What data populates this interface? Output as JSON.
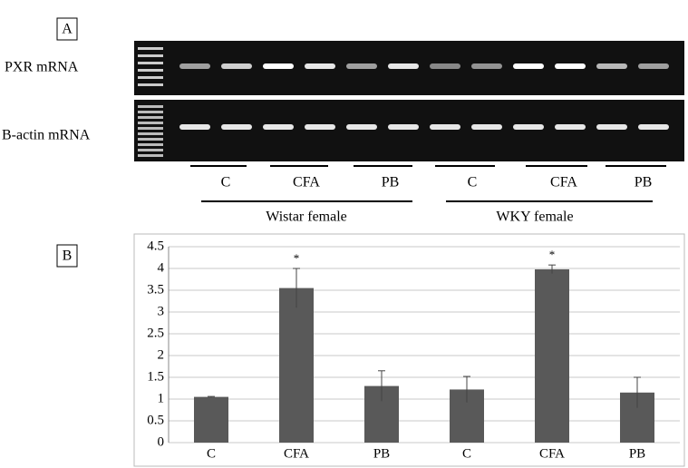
{
  "panel_a": {
    "panel_label": "A",
    "row_labels": [
      "PXR mRNA",
      "B-actin mRNA"
    ],
    "lane_groups": [
      "C",
      "CFA",
      "PB",
      "C",
      "CFA",
      "PB"
    ],
    "strains": [
      "Wistar female",
      "WKY female"
    ]
  },
  "chart_data": {
    "type": "bar",
    "panel_label": "B",
    "categories": [
      "C",
      "CFA",
      "PB",
      "C",
      "CFA",
      "PB"
    ],
    "values": [
      1.05,
      3.55,
      1.3,
      1.22,
      3.98,
      1.15
    ],
    "errors": [
      0.01,
      0.45,
      0.35,
      0.3,
      0.1,
      0.35
    ],
    "significance": [
      null,
      "*",
      null,
      null,
      "*",
      null
    ],
    "color": "#595959",
    "ylim": [
      0,
      4.5
    ],
    "yticks": [
      0,
      0.5,
      1,
      1.5,
      2,
      2.5,
      3,
      3.5,
      4,
      4.5
    ],
    "grid": true
  }
}
